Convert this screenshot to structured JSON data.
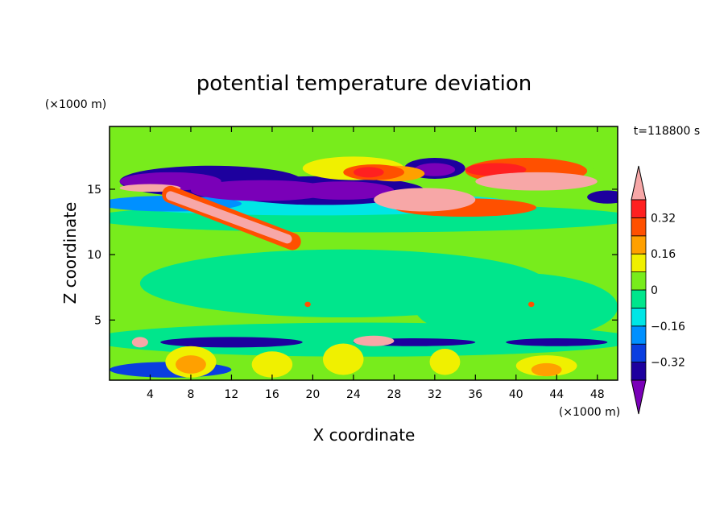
{
  "chart_data": {
    "type": "heatmap",
    "title": "potential temperature deviation",
    "xlabel": "X coordinate",
    "ylabel": "Z coordinate",
    "x_unit": "(×1000 m)",
    "y_unit": "(×1000 m)",
    "time_label": "t=118800 s",
    "xlim": [
      0,
      50
    ],
    "ylim": [
      0.4,
      19.8
    ],
    "x_ticks": [
      4,
      8,
      12,
      16,
      20,
      24,
      28,
      32,
      36,
      40,
      44,
      48
    ],
    "y_ticks": [
      5,
      10,
      15
    ],
    "colorbar": {
      "levels": [
        -0.4,
        -0.32,
        -0.24,
        -0.16,
        -0.08,
        0,
        0.08,
        0.16,
        0.24,
        0.32,
        0.4
      ],
      "tick_labels": [
        "−0.32",
        "−0.16",
        "0",
        "0.16",
        "0.32"
      ],
      "tick_values": [
        -0.32,
        -0.16,
        0,
        0.16,
        0.32
      ],
      "colors": [
        "#7a00b8",
        "#1d009e",
        "#0a3ee0",
        "#0090ff",
        "#00e6e6",
        "#00e68c",
        "#78ec1c",
        "#f0f000",
        "#ffa000",
        "#ff5000",
        "#ff2020",
        "#f7a7a7"
      ]
    },
    "regions": [
      {
        "value": 0.05,
        "shape": "ellipse",
        "cx": 25,
        "cy": 10,
        "rx": 27,
        "ry": 12
      },
      {
        "value": 0.06,
        "shape": "ellipse",
        "cx": 34,
        "cy": 18.2,
        "rx": 15,
        "ry": 1.8
      },
      {
        "value": 0.06,
        "shape": "ellipse",
        "cx": 9,
        "cy": 18.6,
        "rx": 9,
        "ry": 1.6
      },
      {
        "value": -0.04,
        "shape": "ellipse",
        "cx": 23,
        "cy": 7.8,
        "rx": 20,
        "ry": 2.6
      },
      {
        "value": -0.04,
        "shape": "ellipse",
        "cx": 40,
        "cy": 6,
        "rx": 10,
        "ry": 2.6
      },
      {
        "value": -0.06,
        "shape": "ellipse",
        "cx": 25,
        "cy": 3.5,
        "rx": 27,
        "ry": 1.3
      },
      {
        "value": -0.06,
        "shape": "ellipse",
        "cx": 25,
        "cy": 12.8,
        "rx": 27,
        "ry": 1.1
      },
      {
        "value": -0.1,
        "shape": "ellipse",
        "cx": 20,
        "cy": 13.9,
        "rx": 20,
        "ry": 0.9
      },
      {
        "value": -0.2,
        "shape": "ellipse",
        "cx": 6,
        "cy": 13.9,
        "rx": 7,
        "ry": 0.6
      },
      {
        "value": -0.34,
        "shape": "ellipse",
        "cx": 10,
        "cy": 15.6,
        "rx": 9,
        "ry": 1.2
      },
      {
        "value": -0.34,
        "shape": "ellipse",
        "cx": 21,
        "cy": 14.9,
        "rx": 10,
        "ry": 1.1
      },
      {
        "value": -0.42,
        "shape": "ellipse",
        "cx": 6,
        "cy": 15.6,
        "rx": 5,
        "ry": 0.7
      },
      {
        "value": -0.42,
        "shape": "ellipse",
        "cx": 15,
        "cy": 14.9,
        "rx": 7,
        "ry": 0.8
      },
      {
        "value": -0.42,
        "shape": "ellipse",
        "cx": 23,
        "cy": 14.9,
        "rx": 5,
        "ry": 0.7
      },
      {
        "value": -0.34,
        "shape": "ellipse",
        "cx": 32,
        "cy": 16.6,
        "rx": 3,
        "ry": 0.8
      },
      {
        "value": -0.42,
        "shape": "ellipse",
        "cx": 32,
        "cy": 16.5,
        "rx": 2,
        "ry": 0.5
      },
      {
        "value": -0.34,
        "shape": "ellipse",
        "cx": 49,
        "cy": 14.4,
        "rx": 2,
        "ry": 0.5
      },
      {
        "value": 0.14,
        "shape": "ellipse",
        "cx": 24,
        "cy": 16.6,
        "rx": 5,
        "ry": 0.9
      },
      {
        "value": 0.2,
        "shape": "ellipse",
        "cx": 28,
        "cy": 16.2,
        "rx": 3,
        "ry": 0.6
      },
      {
        "value": 0.28,
        "shape": "ellipse",
        "cx": 26,
        "cy": 16.3,
        "rx": 3,
        "ry": 0.6
      },
      {
        "value": 0.36,
        "shape": "ellipse",
        "cx": 25.5,
        "cy": 16.3,
        "rx": 1.5,
        "ry": 0.4
      },
      {
        "value": 0.3,
        "shape": "ellipse",
        "cx": 41,
        "cy": 16.4,
        "rx": 6,
        "ry": 1.0
      },
      {
        "value": 0.38,
        "shape": "ellipse",
        "cx": 38,
        "cy": 16.5,
        "rx": 3,
        "ry": 0.5
      },
      {
        "value": 0.45,
        "shape": "ellipse",
        "cx": 42,
        "cy": 15.6,
        "rx": 6,
        "ry": 0.7
      },
      {
        "value": 0.3,
        "shape": "ellipse",
        "cx": 35,
        "cy": 13.6,
        "rx": 7,
        "ry": 0.7
      },
      {
        "value": 0.45,
        "shape": "ellipse",
        "cx": 31,
        "cy": 14.2,
        "rx": 5,
        "ry": 0.9
      },
      {
        "value": 0.45,
        "shape": "ellipse",
        "cx": 4,
        "cy": 15.1,
        "rx": 3,
        "ry": 0.3
      },
      {
        "value": 0.3,
        "shape": "band",
        "x1": 6,
        "z1": 14.6,
        "x2": 18,
        "z2": 11,
        "w": 1.3
      },
      {
        "value": 0.45,
        "shape": "band",
        "x1": 6,
        "z1": 14.5,
        "x2": 17.5,
        "z2": 11.2,
        "w": 0.7
      },
      {
        "value": -0.34,
        "shape": "ellipse",
        "cx": 12,
        "cy": 3.3,
        "rx": 7,
        "ry": 0.4
      },
      {
        "value": -0.34,
        "shape": "ellipse",
        "cx": 30,
        "cy": 3.3,
        "rx": 6,
        "ry": 0.3
      },
      {
        "value": -0.34,
        "shape": "ellipse",
        "cx": 44,
        "cy": 3.3,
        "rx": 5,
        "ry": 0.3
      },
      {
        "value": -0.26,
        "shape": "ellipse",
        "cx": 6,
        "cy": 1.2,
        "rx": 6,
        "ry": 0.6
      },
      {
        "value": 0.12,
        "shape": "ellipse",
        "cx": 8,
        "cy": 1.8,
        "rx": 2.5,
        "ry": 1.2
      },
      {
        "value": 0.12,
        "shape": "ellipse",
        "cx": 16,
        "cy": 1.6,
        "rx": 2,
        "ry": 1.0
      },
      {
        "value": 0.12,
        "shape": "ellipse",
        "cx": 23,
        "cy": 2.0,
        "rx": 2,
        "ry": 1.2
      },
      {
        "value": 0.12,
        "shape": "ellipse",
        "cx": 33,
        "cy": 1.8,
        "rx": 1.5,
        "ry": 1.0
      },
      {
        "value": 0.12,
        "shape": "ellipse",
        "cx": 43,
        "cy": 1.5,
        "rx": 3,
        "ry": 0.8
      },
      {
        "value": 0.2,
        "shape": "ellipse",
        "cx": 8,
        "cy": 1.6,
        "rx": 1.5,
        "ry": 0.7
      },
      {
        "value": 0.2,
        "shape": "ellipse",
        "cx": 43,
        "cy": 1.2,
        "rx": 1.5,
        "ry": 0.5
      },
      {
        "value": 0.45,
        "shape": "ellipse",
        "cx": 3,
        "cy": 3.3,
        "rx": 0.8,
        "ry": 0.4
      },
      {
        "value": 0.45,
        "shape": "ellipse",
        "cx": 26,
        "cy": 3.4,
        "rx": 2,
        "ry": 0.4
      },
      {
        "value": 0.3,
        "shape": "ellipse",
        "cx": 41.5,
        "cy": 6.2,
        "rx": 0.3,
        "ry": 0.2
      },
      {
        "value": 0.3,
        "shape": "ellipse",
        "cx": 19.5,
        "cy": 6.2,
        "rx": 0.3,
        "ry": 0.2
      }
    ]
  }
}
